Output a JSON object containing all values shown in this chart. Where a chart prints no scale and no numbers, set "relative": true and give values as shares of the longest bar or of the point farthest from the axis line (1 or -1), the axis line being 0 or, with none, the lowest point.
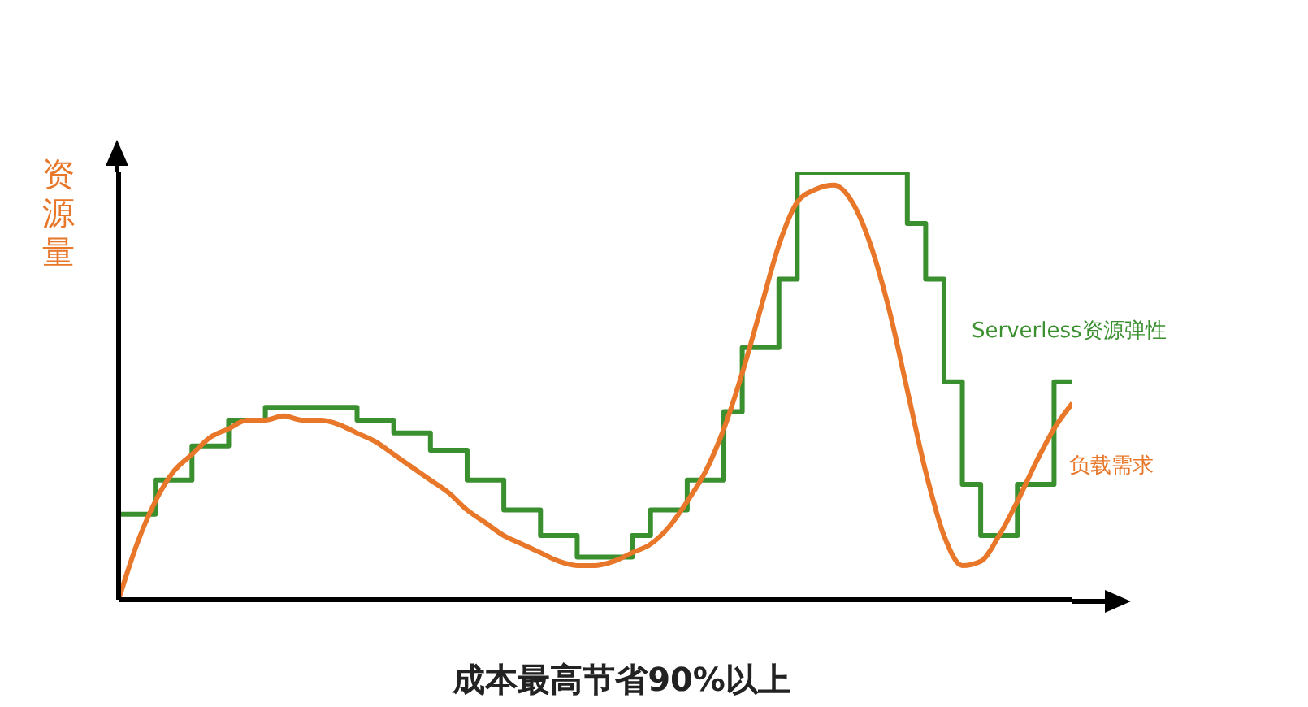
{
  "chart_data": {
    "type": "line",
    "relative": true,
    "ylabel": "资源量",
    "annotations": [
      "成本最高节省90%以上"
    ],
    "categories": [
      null,
      null,
      null,
      null,
      null,
      null,
      null,
      null,
      null,
      null,
      null,
      null,
      null,
      null,
      null,
      null,
      null,
      null,
      null,
      null,
      null,
      null,
      null,
      null,
      null,
      null,
      null,
      null,
      null,
      null,
      null,
      null,
      null,
      null,
      null,
      null,
      null,
      null,
      null,
      null,
      null,
      null,
      null,
      null,
      null,
      null,
      null,
      null,
      null,
      null,
      null,
      null,
      null
    ],
    "marker": "none",
    "grid": false,
    "legend": false,
    "series": [
      {
        "name": "Serverless资源弹性",
        "type": "step",
        "color": "#3a8f2e",
        "values": [
          0.2,
          0.2,
          0.28,
          0.28,
          0.36,
          0.36,
          0.42,
          0.42,
          0.45,
          0.45,
          0.45,
          0.45,
          0.45,
          0.42,
          0.42,
          0.39,
          0.39,
          0.35,
          0.35,
          0.28,
          0.28,
          0.21,
          0.21,
          0.15,
          0.15,
          0.1,
          0.1,
          0.1,
          0.15,
          0.21,
          0.21,
          0.28,
          0.28,
          0.44,
          0.59,
          0.59,
          0.75,
          1,
          1,
          1,
          1,
          1,
          1,
          0.88,
          0.75,
          0.51,
          0.27,
          0.15,
          0.15,
          0.27,
          0.27,
          0.51,
          0.51
        ]
      },
      {
        "name": "负载需求",
        "color": "#e8772a",
        "values": [
          0,
          0.13,
          0.23,
          0.3,
          0.34,
          0.38,
          0.4,
          0.42,
          0.42,
          0.43,
          0.42,
          0.42,
          0.41,
          0.39,
          0.37,
          0.34,
          0.31,
          0.28,
          0.25,
          0.21,
          0.18,
          0.15,
          0.13,
          0.11,
          0.09,
          0.08,
          0.08,
          0.09,
          0.11,
          0.13,
          0.17,
          0.23,
          0.3,
          0.4,
          0.53,
          0.68,
          0.83,
          0.93,
          0.96,
          0.97,
          0.93,
          0.83,
          0.68,
          0.49,
          0.3,
          0.15,
          0.08,
          0.09,
          0.15,
          0.23,
          0.32,
          0.4,
          0.46
        ]
      }
    ]
  }
}
